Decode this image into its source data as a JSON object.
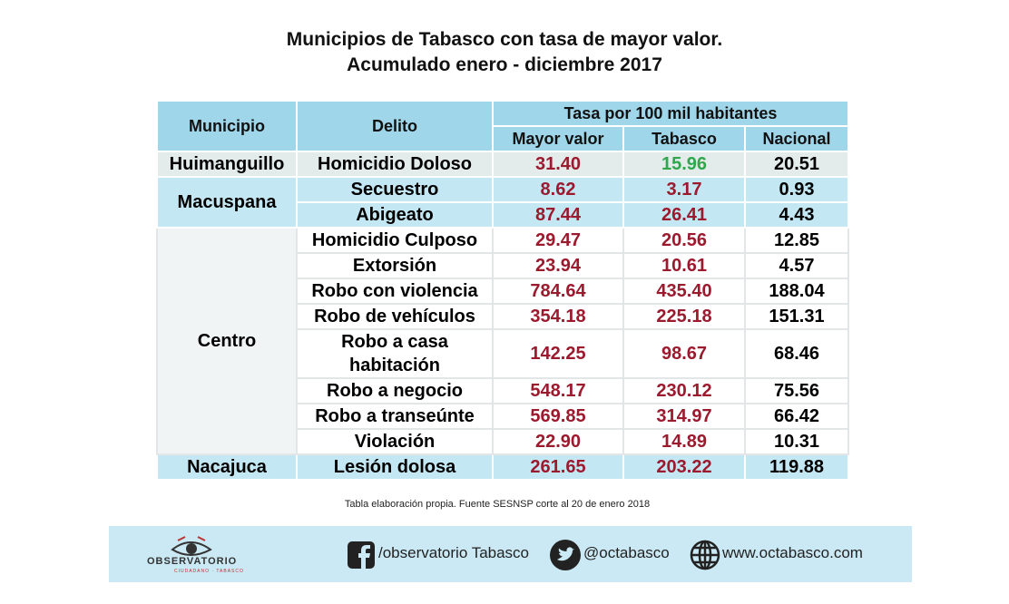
{
  "header": {
    "title_line1": "Municipios de Tabasco con tasa de mayor valor.",
    "title_line2": "Acumulado enero - diciembre 2017"
  },
  "table": {
    "columns": {
      "municipio": "Municipio",
      "delito": "Delito",
      "tasa": "Tasa por 100 mil habitantes",
      "mayor": "Mayor valor",
      "tabasco": "Tabasco",
      "nacional": "Nacional"
    },
    "groups": [
      {
        "municipio": "Huimanguillo",
        "rows": [
          [
            "Homicidio Doloso",
            "31.40",
            "15.96",
            "20.51"
          ]
        ]
      },
      {
        "municipio": "Macuspana",
        "rows": [
          [
            "Secuestro",
            "8.62",
            "3.17",
            "0.93"
          ],
          [
            "Abigeato",
            "87.44",
            "26.41",
            "4.43"
          ]
        ]
      },
      {
        "municipio": "Centro",
        "rows": [
          [
            "Homicidio Culposo",
            "29.47",
            "20.56",
            "12.85"
          ],
          [
            "Extorsión",
            "23.94",
            "10.61",
            "4.57"
          ],
          [
            "Robo con violencia",
            "784.64",
            "435.40",
            "188.04"
          ],
          [
            "Robo de vehículos",
            "354.18",
            "225.18",
            "151.31"
          ],
          [
            "Robo a casa habitación",
            "142.25",
            "98.67",
            "68.46"
          ],
          [
            "Robo a negocio",
            "548.17",
            "230.12",
            "75.56"
          ],
          [
            "Robo a transeúnte",
            "569.85",
            "314.97",
            "66.42"
          ],
          [
            "Violación",
            "22.90",
            "14.89",
            "10.31"
          ]
        ]
      },
      {
        "municipio": "Nacajuca",
        "rows": [
          [
            "Lesión dolosa",
            "261.65",
            "203.22",
            "119.88"
          ]
        ]
      }
    ]
  },
  "footer": {
    "source": "Tabla elaboración propia. Fuente SESNSP corte al 20 de enero   2018",
    "logo": "OBSERVATORIO",
    "logo_sub": "CIUDADANO · TABASCO",
    "facebook": "/observatorio Tabasco",
    "twitter": "@octabasco",
    "web": "www.octabasco.com"
  }
}
